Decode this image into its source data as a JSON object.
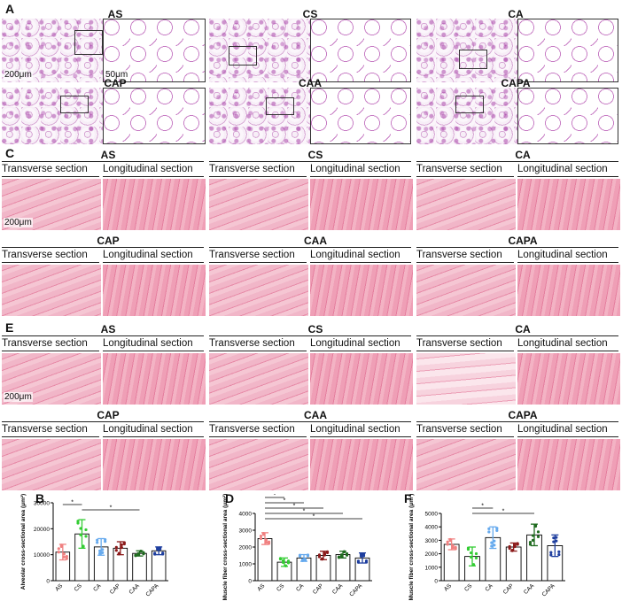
{
  "panels": {
    "A": {
      "label": "A",
      "groups": [
        "AS",
        "CS",
        "CA",
        "CAP",
        "CAA",
        "CAPA"
      ],
      "scale_low": "200μm",
      "scale_high": "50μm"
    },
    "C": {
      "label": "C",
      "groups": [
        "AS",
        "CS",
        "CA",
        "CAP",
        "CAA",
        "CAPA"
      ],
      "transverse": "Transverse section",
      "longitudinal": "Longitudinal section",
      "scale": "200μm"
    },
    "E": {
      "label": "E",
      "groups": [
        "AS",
        "CS",
        "CA",
        "CAP",
        "CAA",
        "CAPA"
      ],
      "transverse": "Transverse section",
      "longitudinal": "Longitudinal section",
      "scale": "200μm"
    }
  },
  "colors": {
    "AS": "#f08080",
    "CS": "#33cc33",
    "CA": "#66aaee",
    "CAP": "#8b1a1a",
    "CAA": "#1f6b1f",
    "CAPA": "#1f3f9f"
  },
  "chart_data": [
    {
      "panel": "B",
      "type": "bar",
      "ylabel": "Alveolar cross-sectional area (μm²)",
      "categories": [
        "AS",
        "CS",
        "CA",
        "CAP",
        "CAA",
        "CAPA"
      ],
      "values": [
        11000,
        18000,
        13000,
        12500,
        10500,
        11500
      ],
      "errors": [
        3000,
        5500,
        3200,
        2500,
        1000,
        1500
      ],
      "ylim": [
        0,
        30000
      ],
      "yticks": [
        "0",
        "10000",
        "20000",
        "30000"
      ],
      "significance": [
        {
          "from": "AS",
          "to": "CS",
          "mark": "*"
        },
        {
          "from": "CS",
          "to": "CAA",
          "mark": "*"
        }
      ]
    },
    {
      "panel": "D",
      "type": "bar",
      "ylabel": "Muscle fiber cross-sectional area (μm²)",
      "categories": [
        "AS",
        "CS",
        "CA",
        "CAP",
        "CAA",
        "CAPA"
      ],
      "values": [
        2500,
        1100,
        1350,
        1500,
        1550,
        1350
      ],
      "errors": [
        350,
        250,
        200,
        250,
        200,
        300
      ],
      "ylim": [
        0,
        4000
      ],
      "yticks": [
        "0",
        "1000",
        "2000",
        "3000",
        "4000"
      ],
      "significance": [
        {
          "from": "AS",
          "to": "CS",
          "mark": "*"
        },
        {
          "from": "AS",
          "to": "CA",
          "mark": "*"
        },
        {
          "from": "AS",
          "to": "CAP",
          "mark": "*"
        },
        {
          "from": "AS",
          "to": "CAA",
          "mark": "*"
        },
        {
          "from": "AS",
          "to": "CAPA",
          "mark": "*"
        }
      ]
    },
    {
      "panel": "F",
      "type": "bar",
      "ylabel": "Muscle fiber cross-sectional area (μm²)",
      "categories": [
        "AS",
        "CS",
        "CA",
        "CAP",
        "CAA",
        "CAPA"
      ],
      "values": [
        2700,
        1800,
        3200,
        2500,
        3400,
        2600
      ],
      "errors": [
        400,
        700,
        800,
        300,
        800,
        800
      ],
      "ylim": [
        0,
        5000
      ],
      "yticks": [
        "0",
        "1000",
        "2000",
        "3000",
        "4000",
        "5000"
      ],
      "significance": [
        {
          "from": "CS",
          "to": "CA",
          "mark": "*"
        },
        {
          "from": "CS",
          "to": "CAA",
          "mark": "*"
        }
      ]
    }
  ]
}
